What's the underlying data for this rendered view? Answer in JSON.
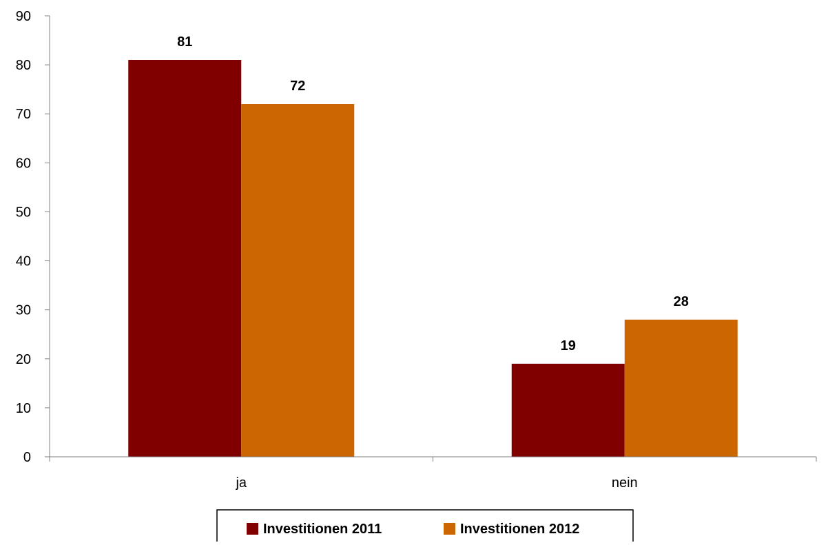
{
  "chart_data": {
    "type": "bar",
    "categories": [
      "ja",
      "nein"
    ],
    "series": [
      {
        "name": "Investitionen 2011",
        "values": [
          81,
          19
        ],
        "color": "#800000"
      },
      {
        "name": "Investitionen 2012",
        "values": [
          72,
          28
        ],
        "color": "#CC6600"
      }
    ],
    "ylim": [
      0,
      90
    ],
    "yticks": [
      0,
      10,
      20,
      30,
      40,
      50,
      60,
      70,
      80,
      90
    ],
    "data_labels": true,
    "grid": false,
    "legend_position": "bottom",
    "title": "",
    "xlabel": "",
    "ylabel": ""
  }
}
